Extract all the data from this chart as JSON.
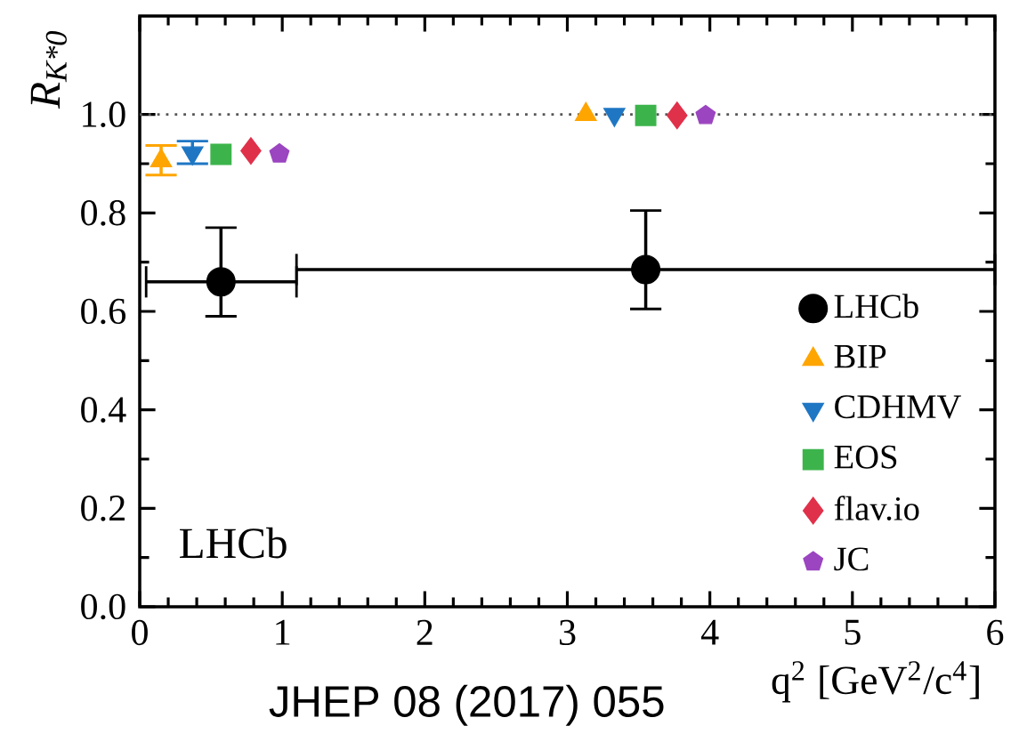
{
  "chart_data": {
    "type": "scatter",
    "xlabel": "q$^{2}$ [GeV$^{2}$/c$^{4}$]",
    "ylabel": "R$_{K*0}$",
    "xlim": [
      0,
      6
    ],
    "ylim": [
      0,
      1.2
    ],
    "xticks": [
      0,
      1,
      2,
      3,
      4,
      5,
      6
    ],
    "yticks": [
      {
        "value": 0,
        "label": "0.0"
      },
      {
        "value": 0.2,
        "label": "0.2"
      },
      {
        "value": 0.4,
        "label": "0.4"
      },
      {
        "value": 0.6,
        "label": "0.6"
      },
      {
        "value": 0.8,
        "label": "0.8"
      },
      {
        "value": 1.0,
        "label": "1.0"
      }
    ],
    "legend": "bottom right",
    "grid": false,
    "ref_lines": [
      {
        "axis": "y",
        "value": 1.0,
        "line_style": "dotted",
        "color": "#555555"
      }
    ],
    "annotations": [
      "LHCb",
      "JHEP 08 (2017) 055"
    ],
    "series": [
      {
        "name": "LHCb",
        "color": "#000000",
        "marker": "circle",
        "x": [
          0.57,
          3.55
        ],
        "values": [
          0.66,
          0.685
        ],
        "errors": [
          [
            0.59,
            0.77
          ],
          [
            0.605,
            0.805
          ]
        ],
        "xerrors": [
          [
            0.045,
            1.1
          ],
          [
            1.1,
            6.0
          ]
        ]
      },
      {
        "name": "BIP",
        "color": "#ffa500",
        "marker": "triangle",
        "x": [
          0.15,
          3.13
        ],
        "values": [
          0.906,
          1.0
        ],
        "errors": [
          [
            0.877,
            0.937
          ],
          null
        ]
      },
      {
        "name": "CDHMV",
        "color": "#1f77c4",
        "marker": "triangle-down",
        "x": [
          0.37,
          3.33
        ],
        "values": [
          0.922,
          1.0
        ],
        "errors": [
          [
            0.9,
            0.946
          ],
          null
        ]
      },
      {
        "name": "EOS",
        "color": "#3cb44b",
        "marker": "square",
        "x": [
          0.57,
          3.55
        ],
        "values": [
          0.919,
          0.998
        ]
      },
      {
        "name": "flav.io",
        "color": "#e0314b",
        "marker": "diamond",
        "x": [
          0.78,
          3.77
        ],
        "values": [
          0.926,
          0.998
        ]
      },
      {
        "name": "JC",
        "color": "#9b45c0",
        "x": [
          0.98,
          3.97
        ],
        "values": [
          0.92,
          0.998
        ]
      }
    ]
  }
}
